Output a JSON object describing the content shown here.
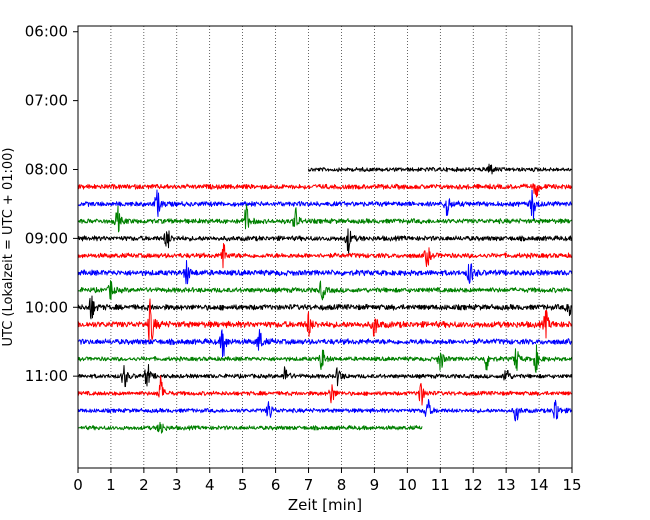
{
  "chart_data": {
    "type": "line",
    "title": "",
    "xlabel": "Zeit  [min]",
    "ylabel": "UTC (Lokalzeit = UTC + 01:00)",
    "xlim": [
      0,
      15
    ],
    "x_ticks": [
      "0",
      "1",
      "2",
      "3",
      "4",
      "5",
      "6",
      "7",
      "8",
      "9",
      "10",
      "11",
      "12",
      "13",
      "14",
      "15"
    ],
    "y_ticks": [
      "06:00",
      "07:00",
      "08:00",
      "09:00",
      "10:00",
      "11:00"
    ],
    "y_range_minutes_utc": [
      355,
      740
    ],
    "grid": "vertical dotted at each minute",
    "colors": {
      "black": "#000000",
      "red": "#ff0000",
      "blue": "#0000ff",
      "green": "#008000"
    },
    "series": [
      {
        "start": "08:00",
        "color": "black",
        "x_start": 7.0,
        "x_end": 15.0,
        "amplitude": 0.6,
        "events": [
          [
            12.5,
            1.0
          ]
        ]
      },
      {
        "start": "08:15",
        "color": "red",
        "x_start": 0.0,
        "x_end": 15.0,
        "amplitude": 0.7,
        "events": [
          [
            13.9,
            1.4
          ]
        ]
      },
      {
        "start": "08:30",
        "color": "blue",
        "x_start": 0.0,
        "x_end": 15.0,
        "amplitude": 0.7,
        "events": [
          [
            2.4,
            1.8
          ],
          [
            11.2,
            1.8
          ],
          [
            13.8,
            2.0
          ]
        ]
      },
      {
        "start": "08:45",
        "color": "green",
        "x_start": 0.0,
        "x_end": 15.0,
        "amplitude": 0.7,
        "events": [
          [
            1.2,
            1.6
          ],
          [
            5.1,
            2.0
          ],
          [
            6.6,
            1.6
          ]
        ]
      },
      {
        "start": "09:00",
        "color": "black",
        "x_start": 0.0,
        "x_end": 15.0,
        "amplitude": 0.7,
        "events": [
          [
            2.7,
            1.6
          ],
          [
            8.2,
            1.8
          ]
        ]
      },
      {
        "start": "09:15",
        "color": "red",
        "x_start": 0.0,
        "x_end": 15.0,
        "amplitude": 0.7,
        "events": [
          [
            4.4,
            1.6
          ],
          [
            10.6,
            1.4
          ]
        ]
      },
      {
        "start": "09:30",
        "color": "blue",
        "x_start": 0.0,
        "x_end": 15.0,
        "amplitude": 0.8,
        "events": [
          [
            3.3,
            1.6
          ],
          [
            11.9,
            1.8
          ]
        ]
      },
      {
        "start": "09:45",
        "color": "green",
        "x_start": 0.0,
        "x_end": 15.0,
        "amplitude": 0.7,
        "events": [
          [
            1.0,
            1.3
          ],
          [
            7.4,
            1.4
          ]
        ]
      },
      {
        "start": "10:00",
        "color": "black",
        "x_start": 0.0,
        "x_end": 15.0,
        "amplitude": 0.8,
        "events": [
          [
            0.4,
            1.8
          ],
          [
            14.9,
            1.4
          ]
        ]
      },
      {
        "start": "10:15",
        "color": "red",
        "x_start": 0.0,
        "x_end": 15.0,
        "amplitude": 0.9,
        "events": [
          [
            2.2,
            3.4
          ],
          [
            7.0,
            1.6
          ],
          [
            9.0,
            1.6
          ],
          [
            14.2,
            1.6
          ]
        ]
      },
      {
        "start": "10:30",
        "color": "blue",
        "x_start": 0.0,
        "x_end": 15.0,
        "amplitude": 0.8,
        "events": [
          [
            4.4,
            2.2
          ],
          [
            5.5,
            1.6
          ]
        ]
      },
      {
        "start": "10:45",
        "color": "green",
        "x_start": 0.0,
        "x_end": 15.0,
        "amplitude": 0.6,
        "events": [
          [
            7.4,
            1.6
          ],
          [
            11.0,
            1.6
          ],
          [
            12.4,
            1.4
          ],
          [
            13.3,
            1.6
          ],
          [
            13.9,
            1.6
          ]
        ]
      },
      {
        "start": "11:00",
        "color": "black",
        "x_start": 0.0,
        "x_end": 15.0,
        "amplitude": 0.6,
        "events": [
          [
            1.4,
            1.8
          ],
          [
            2.1,
            1.8
          ],
          [
            6.3,
            1.4
          ],
          [
            7.9,
            1.4
          ],
          [
            13.0,
            1.4
          ]
        ]
      },
      {
        "start": "11:15",
        "color": "red",
        "x_start": 0.0,
        "x_end": 15.0,
        "amplitude": 0.6,
        "events": [
          [
            2.5,
            2.0
          ],
          [
            7.7,
            1.4
          ],
          [
            10.4,
            1.8
          ]
        ]
      },
      {
        "start": "11:30",
        "color": "blue",
        "x_start": 0.0,
        "x_end": 15.0,
        "amplitude": 0.6,
        "events": [
          [
            5.8,
            1.4
          ],
          [
            10.6,
            1.8
          ],
          [
            13.3,
            1.4
          ],
          [
            14.5,
            2.0
          ]
        ]
      },
      {
        "start": "11:45",
        "color": "green",
        "x_start": 0.0,
        "x_end": 10.45,
        "amplitude": 0.6,
        "events": [
          [
            2.5,
            1.2
          ]
        ]
      }
    ]
  }
}
